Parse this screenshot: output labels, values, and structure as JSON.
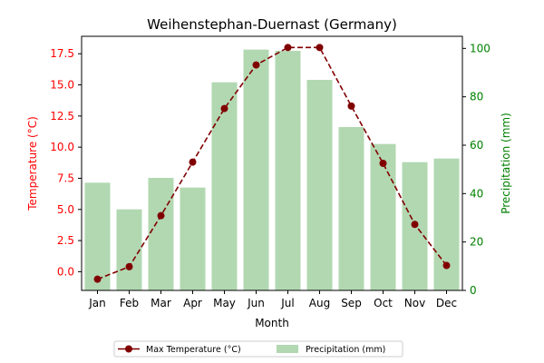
{
  "chart_data": {
    "type": "bar+line",
    "title": "Weihenstephan-Duernast (Germany)",
    "xlabel": "Month",
    "ylabel_left": "Temperature (°C)",
    "ylabel_right": "Precipitation (mm)",
    "categories": [
      "Jan",
      "Feb",
      "Mar",
      "Apr",
      "May",
      "Jun",
      "Jul",
      "Aug",
      "Sep",
      "Oct",
      "Nov",
      "Dec"
    ],
    "series": [
      {
        "name": "Max Temperature (°C)",
        "type": "line",
        "axis": "left",
        "values": [
          -0.6,
          0.4,
          4.5,
          8.8,
          13.1,
          16.6,
          18.0,
          18.0,
          13.3,
          8.7,
          3.8,
          0.5
        ]
      },
      {
        "name": "Precipitation (mm)",
        "type": "bar",
        "axis": "right",
        "values": [
          44.5,
          33.5,
          46.5,
          42.5,
          86,
          99.5,
          99,
          87,
          67.5,
          60.5,
          53,
          54.5
        ]
      }
    ],
    "ylim_left": [
      -1.5,
      18.9
    ],
    "ylim_right": [
      0,
      105
    ],
    "left_ticks": [
      "0.0",
      "2.5",
      "5.0",
      "7.5",
      "10.0",
      "12.5",
      "15.0",
      "17.5"
    ],
    "left_tick_values": [
      0,
      2.5,
      5,
      7.5,
      10,
      12.5,
      15,
      17.5
    ],
    "right_ticks": [
      "0",
      "20",
      "40",
      "60",
      "80",
      "100"
    ],
    "right_tick_values": [
      0,
      20,
      40,
      60,
      80,
      100
    ],
    "grid": false,
    "legend_position": "bottom-center",
    "colors": {
      "line": "#800000",
      "marker": "#800000",
      "bar": "#b2d8b2",
      "left_axis": "#ff0000",
      "right_axis": "#008000"
    }
  }
}
